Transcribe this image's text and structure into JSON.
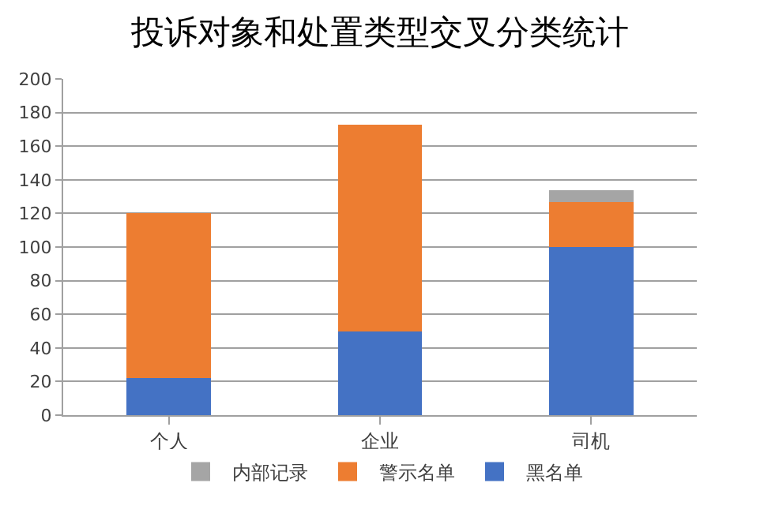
{
  "chart_data": {
    "type": "bar",
    "title": "投诉对象和处置类型交叉分类统计",
    "stacked": true,
    "categories": [
      "个人",
      "企业",
      "司机"
    ],
    "series": [
      {
        "name": "黑名单",
        "color": "#4472c4",
        "values": [
          22,
          50,
          100
        ]
      },
      {
        "name": "警示名单",
        "color": "#ed7d31",
        "values": [
          98,
          123,
          27
        ]
      },
      {
        "name": "内部记录",
        "color": "#a5a5a5",
        "values": [
          0,
          0,
          7
        ]
      }
    ],
    "ylim": [
      0,
      200
    ],
    "yticks": [
      0,
      20,
      40,
      60,
      80,
      100,
      120,
      140,
      160,
      180,
      200
    ],
    "grid": "y",
    "legend": "bottom"
  }
}
